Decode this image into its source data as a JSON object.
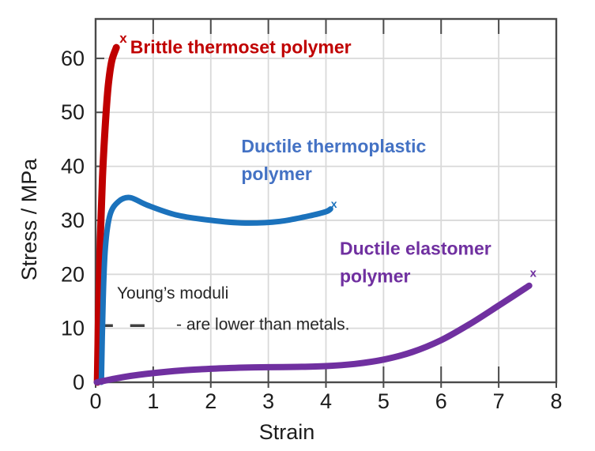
{
  "chart_data": {
    "type": "line",
    "title": "",
    "xlabel": "Strain",
    "ylabel": "Stress / MPa",
    "xlim": [
      0,
      8
    ],
    "ylim": [
      0,
      67.3
    ],
    "xticks": [
      0,
      1,
      2,
      3,
      4,
      5,
      6,
      7,
      8
    ],
    "yticks": [
      0,
      10,
      20,
      30,
      40,
      50,
      60
    ],
    "grid": true,
    "legend_position": "inline-labels",
    "colors": {
      "axis": "#4a4a4a",
      "grid": "#d9d9d9",
      "tick_label": "#1c1c1c",
      "annotation": "#262626"
    },
    "series": [
      {
        "name": "Brittle thermoset polymer",
        "slug": "brittle-thermoset",
        "color": "#c00000",
        "stroke_width": 9,
        "x": [
          0.03,
          0.05,
          0.08,
          0.12,
          0.17,
          0.22,
          0.28,
          0.36
        ],
        "y": [
          0,
          12,
          26,
          38,
          48,
          55,
          59.5,
          62
        ],
        "end_marker": {
          "glyph": "x",
          "x": 0.48,
          "y": 63.8,
          "size": 17
        },
        "label": {
          "lines": [
            "Brittle thermoset polymer"
          ],
          "x": 0.6,
          "y": 60.9,
          "size": 23,
          "bold": true,
          "color": "#c00000"
        }
      },
      {
        "name": "Ductile thermoplastic polymer",
        "slug": "ductile-thermoplastic",
        "color": "#1b72bc",
        "stroke_width": 7,
        "x": [
          0.1,
          0.13,
          0.17,
          0.25,
          0.4,
          0.6,
          0.9,
          1.4,
          2.0,
          2.6,
          3.2,
          3.7,
          4.0,
          4.08
        ],
        "y": [
          0,
          15,
          25,
          31,
          33.5,
          34.2,
          32.8,
          31.0,
          30.0,
          29.5,
          29.8,
          30.8,
          31.6,
          32.1
        ],
        "end_marker": {
          "glyph": "x",
          "x": 4.14,
          "y": 33.1,
          "size": 14
        },
        "label": {
          "lines": [
            "Ductile thermoplastic",
            "polymer"
          ],
          "x": 2.53,
          "y": 42.6,
          "size": 23,
          "bold": true,
          "color": "#4472c4"
        }
      },
      {
        "name": "Ductile elastomer polymer",
        "slug": "ductile-elastomer",
        "color": "#7030a0",
        "stroke_width": 8,
        "x": [
          0.02,
          0.5,
          1.0,
          1.5,
          2.0,
          2.5,
          3.0,
          3.5,
          4.0,
          4.5,
          5.0,
          5.5,
          6.0,
          6.5,
          7.0,
          7.53
        ],
        "y": [
          0,
          1.0,
          1.7,
          2.2,
          2.5,
          2.7,
          2.8,
          2.85,
          3.0,
          3.4,
          4.2,
          5.6,
          7.8,
          10.8,
          14.2,
          17.9
        ],
        "end_marker": {
          "glyph": "x",
          "x": 7.6,
          "y": 20.3,
          "size": 15
        },
        "label": {
          "lines": [
            "Ductile elastomer",
            "polymer"
          ],
          "x": 4.24,
          "y": 23.6,
          "size": 23,
          "bold": true,
          "color": "#7030a0"
        }
      }
    ],
    "annotations": {
      "texts": [
        {
          "text": "Young’s moduli",
          "x": 0.37,
          "y": 15.5,
          "size": 21
        },
        {
          "text": "- are lower than metals.",
          "x": 1.4,
          "y": 9.7,
          "size": 21
        }
      ],
      "dashes": [
        {
          "x1": 0.1,
          "x2": 0.3,
          "y": 10.5
        },
        {
          "x1": 0.6,
          "x2": 0.85,
          "y": 10.5
        }
      ]
    }
  }
}
